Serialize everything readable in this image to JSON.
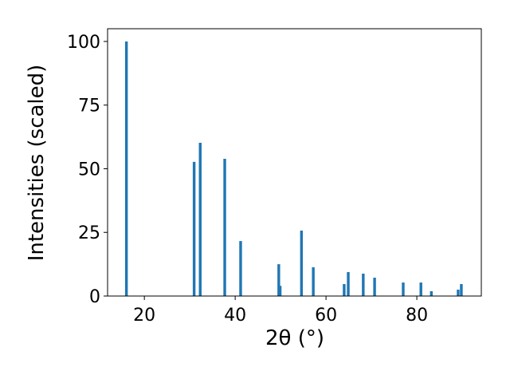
{
  "chart_data": {
    "type": "bar",
    "xlabel": "2θ (°)",
    "ylabel": "Intensities (scaled)",
    "x": [
      16.05,
      30.96,
      32.3,
      37.7,
      41.2,
      49.6,
      49.9,
      54.6,
      57.2,
      64.0,
      64.9,
      68.2,
      70.7,
      77.0,
      80.9,
      83.2,
      89.1,
      89.8
    ],
    "values": [
      100,
      52.7,
      60.2,
      53.9,
      21.6,
      12.5,
      4,
      25.7,
      11.3,
      4.7,
      9.4,
      8.8,
      7.2,
      5.3,
      5.3,
      1.9,
      2.5,
      4.7
    ],
    "color": "#1f77b4",
    "xlim": [
      11.9,
      94.2
    ],
    "ylim": [
      0,
      105
    ],
    "xticks": [
      20,
      40,
      60,
      80
    ],
    "yticks": [
      0,
      25,
      50,
      75,
      100
    ],
    "grid": false
  }
}
